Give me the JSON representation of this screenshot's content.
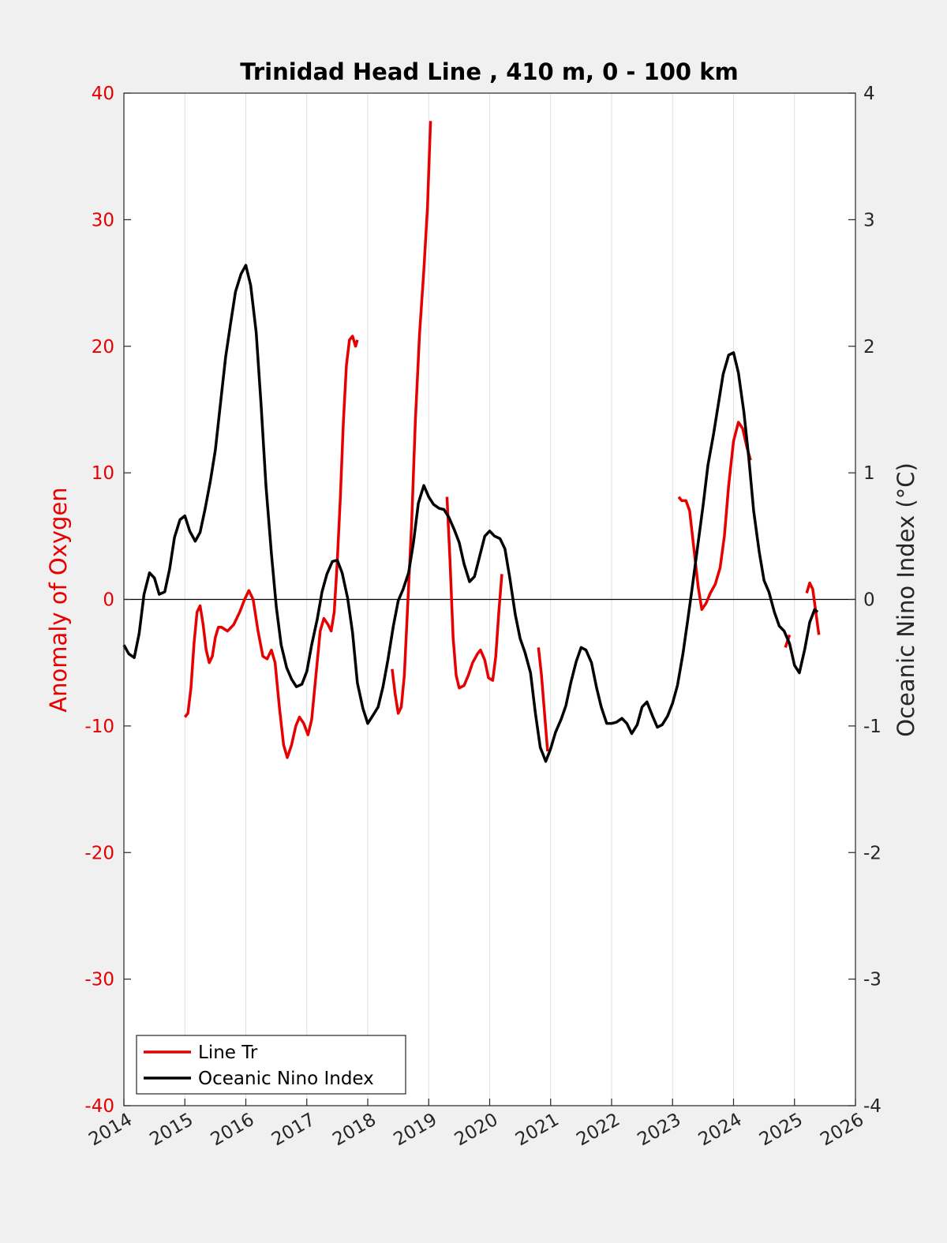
{
  "chart_data": {
    "type": "line",
    "title": "Trinidad Head Line , 410 m, 0 - 100 km",
    "xlabel": "",
    "ylabel_left": "Anomaly of Oxygen",
    "ylabel_right": "Oceanic Nino Index (°C)",
    "xlim": [
      2014,
      2026
    ],
    "ylim_left": [
      -40,
      40
    ],
    "ylim_right": [
      -4,
      4
    ],
    "x_ticks": [
      "2014",
      "2015",
      "2016",
      "2017",
      "2018",
      "2019",
      "2020",
      "2021",
      "2022",
      "2023",
      "2024",
      "2025",
      "2026"
    ],
    "y_ticks_left": [
      "40",
      "30",
      "20",
      "10",
      "0",
      "-10",
      "-20",
      "-30",
      "-40"
    ],
    "y_ticks_right": [
      "4",
      "3",
      "2",
      "1",
      "0",
      "-1",
      "-2",
      "-3",
      "-4"
    ],
    "grid": "vertical",
    "zero_line": true,
    "legend_position": "bottom-left",
    "series": [
      {
        "name": "Line Tr",
        "axis": "left",
        "color": "#e60000",
        "segments": [
          [
            [
              2015.0,
              -9.3
            ],
            [
              2015.05,
              -9.0
            ],
            [
              2015.1,
              -7.0
            ],
            [
              2015.15,
              -3.5
            ],
            [
              2015.2,
              -1.0
            ],
            [
              2015.25,
              -0.5
            ],
            [
              2015.3,
              -2.0
            ],
            [
              2015.35,
              -4.0
            ],
            [
              2015.4,
              -5.0
            ],
            [
              2015.45,
              -4.5
            ],
            [
              2015.5,
              -3.0
            ],
            [
              2015.55,
              -2.2
            ],
            [
              2015.6,
              -2.2
            ],
            [
              2015.7,
              -2.5
            ],
            [
              2015.8,
              -2.0
            ],
            [
              2015.9,
              -1.0
            ],
            [
              2015.98,
              0.0
            ],
            [
              2016.05,
              0.7
            ],
            [
              2016.12,
              0.0
            ],
            [
              2016.2,
              -2.5
            ],
            [
              2016.28,
              -4.5
            ],
            [
              2016.35,
              -4.7
            ],
            [
              2016.42,
              -4.0
            ],
            [
              2016.48,
              -5.0
            ],
            [
              2016.55,
              -8.5
            ],
            [
              2016.62,
              -11.5
            ],
            [
              2016.68,
              -12.5
            ],
            [
              2016.75,
              -11.5
            ],
            [
              2016.82,
              -10.0
            ],
            [
              2016.88,
              -9.3
            ],
            [
              2016.95,
              -9.8
            ],
            [
              2017.02,
              -10.7
            ],
            [
              2017.08,
              -9.5
            ],
            [
              2017.15,
              -6.0
            ],
            [
              2017.22,
              -2.5
            ],
            [
              2017.28,
              -1.5
            ],
            [
              2017.35,
              -2.0
            ],
            [
              2017.4,
              -2.5
            ],
            [
              2017.45,
              -1.0
            ],
            [
              2017.5,
              3.0
            ],
            [
              2017.55,
              8.0
            ],
            [
              2017.6,
              14.0
            ],
            [
              2017.65,
              18.5
            ],
            [
              2017.7,
              20.5
            ],
            [
              2017.75,
              20.8
            ],
            [
              2017.8,
              20.0
            ],
            [
              2017.83,
              20.5
            ]
          ],
          [
            [
              2018.4,
              -5.5
            ],
            [
              2018.45,
              -7.5
            ],
            [
              2018.5,
              -9.0
            ],
            [
              2018.55,
              -8.5
            ],
            [
              2018.6,
              -6.0
            ],
            [
              2018.65,
              -1.0
            ],
            [
              2018.72,
              6.0
            ],
            [
              2018.78,
              14.0
            ],
            [
              2018.85,
              21.0
            ],
            [
              2018.92,
              26.0
            ],
            [
              2018.98,
              31.0
            ],
            [
              2019.03,
              37.8
            ]
          ],
          [
            [
              2019.3,
              8.1
            ],
            [
              2019.35,
              3.0
            ],
            [
              2019.4,
              -3.0
            ],
            [
              2019.45,
              -6.0
            ],
            [
              2019.5,
              -7.0
            ],
            [
              2019.58,
              -6.8
            ],
            [
              2019.65,
              -6.0
            ],
            [
              2019.72,
              -5.0
            ],
            [
              2019.8,
              -4.3
            ],
            [
              2019.85,
              -4.0
            ],
            [
              2019.92,
              -4.8
            ],
            [
              2019.98,
              -6.2
            ],
            [
              2020.05,
              -6.4
            ],
            [
              2020.1,
              -4.5
            ],
            [
              2020.15,
              -1.0
            ],
            [
              2020.2,
              2.0
            ]
          ],
          [
            [
              2020.8,
              -3.8
            ],
            [
              2020.85,
              -6.0
            ],
            [
              2020.9,
              -9.0
            ],
            [
              2020.95,
              -12.0
            ]
          ],
          [
            [
              2023.1,
              8.1
            ],
            [
              2023.15,
              7.8
            ],
            [
              2023.22,
              7.8
            ],
            [
              2023.28,
              7.0
            ],
            [
              2023.35,
              4.0
            ],
            [
              2023.42,
              1.0
            ],
            [
              2023.48,
              -0.8
            ],
            [
              2023.55,
              -0.3
            ],
            [
              2023.62,
              0.5
            ],
            [
              2023.7,
              1.2
            ],
            [
              2023.78,
              2.5
            ],
            [
              2023.85,
              5.0
            ],
            [
              2023.92,
              9.0
            ],
            [
              2024.0,
              12.5
            ],
            [
              2024.08,
              14.0
            ],
            [
              2024.15,
              13.5
            ],
            [
              2024.22,
              12.0
            ],
            [
              2024.28,
              11.0
            ]
          ],
          [
            [
              2024.85,
              -3.8
            ],
            [
              2024.92,
              -2.8
            ]
          ],
          [
            [
              2025.2,
              0.5
            ],
            [
              2025.25,
              1.3
            ],
            [
              2025.3,
              0.8
            ],
            [
              2025.35,
              -1.0
            ],
            [
              2025.4,
              -2.8
            ]
          ]
        ]
      },
      {
        "name": "Oceanic Nino Index",
        "axis": "right",
        "color": "#000000",
        "segments": [
          [
            [
              2014.0,
              -0.36
            ],
            [
              2014.08,
              -0.43
            ],
            [
              2014.17,
              -0.46
            ],
            [
              2014.25,
              -0.27
            ],
            [
              2014.33,
              0.04
            ],
            [
              2014.42,
              0.21
            ],
            [
              2014.5,
              0.17
            ],
            [
              2014.58,
              0.04
            ],
            [
              2014.67,
              0.06
            ],
            [
              2014.75,
              0.24
            ],
            [
              2014.83,
              0.49
            ],
            [
              2014.92,
              0.63
            ],
            [
              2015.0,
              0.66
            ],
            [
              2015.08,
              0.54
            ],
            [
              2015.17,
              0.46
            ],
            [
              2015.25,
              0.53
            ],
            [
              2015.33,
              0.71
            ],
            [
              2015.42,
              0.94
            ],
            [
              2015.5,
              1.18
            ],
            [
              2015.58,
              1.53
            ],
            [
              2015.67,
              1.92
            ],
            [
              2015.75,
              2.18
            ],
            [
              2015.83,
              2.43
            ],
            [
              2015.92,
              2.57
            ],
            [
              2016.0,
              2.64
            ],
            [
              2016.08,
              2.48
            ],
            [
              2016.17,
              2.11
            ],
            [
              2016.25,
              1.54
            ],
            [
              2016.33,
              0.9
            ],
            [
              2016.42,
              0.36
            ],
            [
              2016.5,
              -0.06
            ],
            [
              2016.58,
              -0.36
            ],
            [
              2016.67,
              -0.54
            ],
            [
              2016.75,
              -0.63
            ],
            [
              2016.83,
              -0.69
            ],
            [
              2016.92,
              -0.67
            ],
            [
              2017.0,
              -0.57
            ],
            [
              2017.08,
              -0.36
            ],
            [
              2017.17,
              -0.16
            ],
            [
              2017.25,
              0.06
            ],
            [
              2017.33,
              0.2
            ],
            [
              2017.42,
              0.3
            ],
            [
              2017.5,
              0.31
            ],
            [
              2017.58,
              0.21
            ],
            [
              2017.67,
              0.01
            ],
            [
              2017.75,
              -0.26
            ],
            [
              2017.83,
              -0.66
            ],
            [
              2017.92,
              -0.86
            ],
            [
              2018.0,
              -0.98
            ],
            [
              2018.08,
              -0.92
            ],
            [
              2018.17,
              -0.85
            ],
            [
              2018.25,
              -0.69
            ],
            [
              2018.33,
              -0.48
            ],
            [
              2018.42,
              -0.21
            ],
            [
              2018.5,
              -0.01
            ],
            [
              2018.58,
              0.08
            ],
            [
              2018.67,
              0.21
            ],
            [
              2018.75,
              0.45
            ],
            [
              2018.83,
              0.76
            ],
            [
              2018.92,
              0.9
            ],
            [
              2019.0,
              0.81
            ],
            [
              2019.08,
              0.75
            ],
            [
              2019.17,
              0.72
            ],
            [
              2019.25,
              0.71
            ],
            [
              2019.33,
              0.65
            ],
            [
              2019.42,
              0.55
            ],
            [
              2019.5,
              0.45
            ],
            [
              2019.58,
              0.28
            ],
            [
              2019.67,
              0.14
            ],
            [
              2019.75,
              0.18
            ],
            [
              2019.83,
              0.33
            ],
            [
              2019.92,
              0.5
            ],
            [
              2020.0,
              0.54
            ],
            [
              2020.08,
              0.5
            ],
            [
              2020.17,
              0.48
            ],
            [
              2020.25,
              0.4
            ],
            [
              2020.33,
              0.17
            ],
            [
              2020.42,
              -0.12
            ],
            [
              2020.5,
              -0.31
            ],
            [
              2020.58,
              -0.42
            ],
            [
              2020.67,
              -0.58
            ],
            [
              2020.75,
              -0.9
            ],
            [
              2020.83,
              -1.17
            ],
            [
              2020.92,
              -1.28
            ],
            [
              2021.0,
              -1.18
            ],
            [
              2021.08,
              -1.05
            ],
            [
              2021.17,
              -0.95
            ],
            [
              2021.25,
              -0.84
            ],
            [
              2021.33,
              -0.66
            ],
            [
              2021.42,
              -0.49
            ],
            [
              2021.5,
              -0.38
            ],
            [
              2021.58,
              -0.4
            ],
            [
              2021.67,
              -0.5
            ],
            [
              2021.75,
              -0.69
            ],
            [
              2021.83,
              -0.85
            ],
            [
              2021.92,
              -0.98
            ],
            [
              2022.0,
              -0.98
            ],
            [
              2022.08,
              -0.97
            ],
            [
              2022.17,
              -0.94
            ],
            [
              2022.25,
              -0.98
            ],
            [
              2022.33,
              -1.06
            ],
            [
              2022.42,
              -0.99
            ],
            [
              2022.5,
              -0.85
            ],
            [
              2022.58,
              -0.81
            ],
            [
              2022.67,
              -0.92
            ],
            [
              2022.75,
              -1.01
            ],
            [
              2022.83,
              -0.99
            ],
            [
              2022.92,
              -0.92
            ],
            [
              2023.0,
              -0.82
            ],
            [
              2023.08,
              -0.68
            ],
            [
              2023.17,
              -0.43
            ],
            [
              2023.25,
              -0.16
            ],
            [
              2023.33,
              0.12
            ],
            [
              2023.42,
              0.45
            ],
            [
              2023.5,
              0.74
            ],
            [
              2023.58,
              1.06
            ],
            [
              2023.67,
              1.3
            ],
            [
              2023.75,
              1.54
            ],
            [
              2023.83,
              1.78
            ],
            [
              2023.92,
              1.93
            ],
            [
              2024.0,
              1.95
            ],
            [
              2024.08,
              1.79
            ],
            [
              2024.17,
              1.48
            ],
            [
              2024.25,
              1.12
            ],
            [
              2024.33,
              0.7
            ],
            [
              2024.42,
              0.38
            ],
            [
              2024.5,
              0.15
            ],
            [
              2024.58,
              0.06
            ],
            [
              2024.67,
              -0.1
            ],
            [
              2024.75,
              -0.21
            ],
            [
              2024.83,
              -0.25
            ],
            [
              2024.92,
              -0.35
            ],
            [
              2025.0,
              -0.52
            ],
            [
              2025.08,
              -0.58
            ],
            [
              2025.17,
              -0.39
            ],
            [
              2025.25,
              -0.18
            ],
            [
              2025.33,
              -0.08
            ],
            [
              2025.38,
              -0.1
            ]
          ]
        ]
      }
    ]
  }
}
